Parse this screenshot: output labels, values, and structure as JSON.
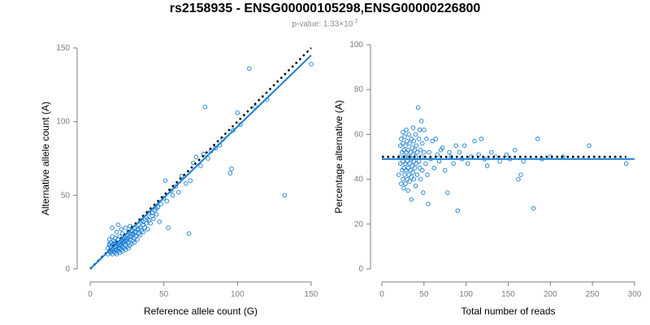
{
  "title": "rs2158935 - ENSG00000105298,ENSG00000226800",
  "subtitle": {
    "prefix": "p-value: 1.33×10",
    "exponent": "-2"
  },
  "colors": {
    "points": "#1a7fd4",
    "fit": "#1a7fd4",
    "reference": "#000000",
    "axis": "#7f7f7f"
  },
  "chart_data": [
    {
      "type": "scatter",
      "xlabel": "Reference allele count (G)",
      "ylabel": "Alternative allele count (A)",
      "xlim": [
        0,
        150
      ],
      "ylim": [
        0,
        150
      ],
      "xticks": [
        0,
        50,
        100,
        150
      ],
      "yticks": [
        0,
        50,
        100,
        150
      ],
      "grid": false,
      "points": [
        [
          12,
          10
        ],
        [
          12,
          14
        ],
        [
          13,
          12
        ],
        [
          13,
          17
        ],
        [
          13,
          20
        ],
        [
          14,
          11
        ],
        [
          14,
          15
        ],
        [
          14,
          18
        ],
        [
          15,
          10
        ],
        [
          15,
          13
        ],
        [
          15,
          16
        ],
        [
          15,
          22
        ],
        [
          15,
          28
        ],
        [
          16,
          12
        ],
        [
          16,
          14
        ],
        [
          16,
          19
        ],
        [
          17,
          11
        ],
        [
          17,
          15
        ],
        [
          17,
          18
        ],
        [
          17,
          21
        ],
        [
          18,
          10
        ],
        [
          18,
          13
        ],
        [
          18,
          17
        ],
        [
          18,
          25
        ],
        [
          19,
          12
        ],
        [
          19,
          16
        ],
        [
          19,
          20
        ],
        [
          19,
          30
        ],
        [
          20,
          11
        ],
        [
          20,
          14
        ],
        [
          20,
          18
        ],
        [
          20,
          22
        ],
        [
          21,
          13
        ],
        [
          21,
          17
        ],
        [
          21,
          19
        ],
        [
          21,
          27
        ],
        [
          22,
          12
        ],
        [
          22,
          15
        ],
        [
          22,
          20
        ],
        [
          22,
          24
        ],
        [
          23,
          14
        ],
        [
          23,
          18
        ],
        [
          23,
          21
        ],
        [
          24,
          13
        ],
        [
          24,
          16
        ],
        [
          24,
          22
        ],
        [
          24,
          28
        ],
        [
          25,
          15
        ],
        [
          25,
          19
        ],
        [
          25,
          23
        ],
        [
          26,
          14
        ],
        [
          26,
          18
        ],
        [
          26,
          25
        ],
        [
          27,
          16
        ],
        [
          27,
          20
        ],
        [
          27,
          29
        ],
        [
          28,
          17
        ],
        [
          28,
          22
        ],
        [
          28,
          26
        ],
        [
          29,
          19
        ],
        [
          29,
          24
        ],
        [
          30,
          18
        ],
        [
          30,
          21
        ],
        [
          30,
          28
        ],
        [
          31,
          22
        ],
        [
          31,
          25
        ],
        [
          32,
          20
        ],
        [
          32,
          27
        ],
        [
          33,
          24
        ],
        [
          33,
          30
        ],
        [
          34,
          23
        ],
        [
          34,
          28
        ],
        [
          35,
          26
        ],
        [
          35,
          33
        ],
        [
          36,
          25
        ],
        [
          36,
          30
        ],
        [
          37,
          28
        ],
        [
          38,
          31
        ],
        [
          38,
          35
        ],
        [
          39,
          27
        ],
        [
          40,
          33
        ],
        [
          40,
          38
        ],
        [
          41,
          31
        ],
        [
          42,
          36
        ],
        [
          43,
          34
        ],
        [
          44,
          40
        ],
        [
          45,
          37
        ],
        [
          46,
          42
        ],
        [
          47,
          32
        ],
        [
          48,
          44
        ],
        [
          50,
          48
        ],
        [
          51,
          60
        ],
        [
          52,
          46
        ],
        [
          53,
          28
        ],
        [
          55,
          53
        ],
        [
          56,
          50
        ],
        [
          58,
          56
        ],
        [
          60,
          52
        ],
        [
          62,
          63
        ],
        [
          65,
          58
        ],
        [
          67,
          24
        ],
        [
          68,
          60
        ],
        [
          70,
          72
        ],
        [
          72,
          76
        ],
        [
          75,
          70
        ],
        [
          77,
          78
        ],
        [
          78,
          110
        ],
        [
          80,
          75
        ],
        [
          82,
          80
        ],
        [
          85,
          82
        ],
        [
          88,
          84
        ],
        [
          90,
          88
        ],
        [
          95,
          65
        ],
        [
          96,
          68
        ],
        [
          97,
          94
        ],
        [
          100,
          106
        ],
        [
          102,
          98
        ],
        [
          108,
          136
        ],
        [
          112,
          110
        ],
        [
          120,
          115
        ],
        [
          132,
          50
        ],
        [
          150,
          139
        ],
        [
          18,
          15
        ],
        [
          20,
          16
        ],
        [
          23,
          19
        ],
        [
          26,
          21
        ],
        [
          29,
          23
        ],
        [
          16,
          17
        ],
        [
          19,
          14
        ],
        [
          22,
          18
        ],
        [
          25,
          20
        ],
        [
          28,
          24
        ],
        [
          14,
          12
        ],
        [
          13,
          16
        ],
        [
          17,
          13
        ],
        [
          21,
          16
        ],
        [
          24,
          19
        ],
        [
          27,
          22
        ],
        [
          30,
          25
        ],
        [
          33,
          27
        ],
        [
          36,
          32
        ],
        [
          39,
          34
        ],
        [
          42,
          38
        ],
        [
          45,
          41
        ]
      ],
      "fit_line": [
        [
          0,
          0
        ],
        [
          150,
          145
        ]
      ],
      "reference_line": [
        [
          0,
          0
        ],
        [
          150,
          150
        ]
      ]
    },
    {
      "type": "scatter",
      "xlabel": "Total number of reads",
      "ylabel": "Percentage alternative (A)",
      "xlim": [
        0,
        300
      ],
      "ylim": [
        0,
        100
      ],
      "xticks": [
        0,
        50,
        100,
        150,
        200,
        250,
        300
      ],
      "yticks": [
        0,
        20,
        40,
        60,
        80,
        100
      ],
      "grid": false,
      "points": [
        [
          20,
          42
        ],
        [
          21,
          50
        ],
        [
          22,
          47
        ],
        [
          22,
          55
        ],
        [
          23,
          38
        ],
        [
          23,
          58
        ],
        [
          24,
          44
        ],
        [
          24,
          52
        ],
        [
          25,
          40
        ],
        [
          25,
          48
        ],
        [
          25,
          56
        ],
        [
          25,
          61
        ],
        [
          26,
          36
        ],
        [
          26,
          45
        ],
        [
          26,
          53
        ],
        [
          27,
          42
        ],
        [
          27,
          50
        ],
        [
          27,
          59
        ],
        [
          28,
          38
        ],
        [
          28,
          47
        ],
        [
          28,
          55
        ],
        [
          29,
          44
        ],
        [
          29,
          52
        ],
        [
          29,
          62
        ],
        [
          30,
          40
        ],
        [
          30,
          48
        ],
        [
          30,
          57
        ],
        [
          31,
          35
        ],
        [
          31,
          45
        ],
        [
          31,
          53
        ],
        [
          32,
          42
        ],
        [
          32,
          50
        ],
        [
          32,
          60
        ],
        [
          33,
          39
        ],
        [
          33,
          47
        ],
        [
          33,
          56
        ],
        [
          34,
          44
        ],
        [
          34,
          52
        ],
        [
          35,
          31
        ],
        [
          35,
          41
        ],
        [
          35,
          49
        ],
        [
          35,
          58
        ],
        [
          36,
          46
        ],
        [
          36,
          54
        ],
        [
          37,
          43
        ],
        [
          37,
          51
        ],
        [
          37,
          63
        ],
        [
          38,
          40
        ],
        [
          38,
          48
        ],
        [
          38,
          57
        ],
        [
          39,
          45
        ],
        [
          39,
          53
        ],
        [
          40,
          37
        ],
        [
          40,
          50
        ],
        [
          40,
          60
        ],
        [
          41,
          47
        ],
        [
          41,
          55
        ],
        [
          42,
          42
        ],
        [
          42,
          52
        ],
        [
          43,
          72
        ],
        [
          44,
          48
        ],
        [
          44,
          58
        ],
        [
          45,
          45
        ],
        [
          45,
          62
        ],
        [
          46,
          40
        ],
        [
          46,
          53
        ],
        [
          47,
          50
        ],
        [
          47,
          66
        ],
        [
          48,
          44
        ],
        [
          48,
          56
        ],
        [
          49,
          34
        ],
        [
          50,
          52
        ],
        [
          50,
          62
        ],
        [
          52,
          47
        ],
        [
          53,
          58
        ],
        [
          54,
          42
        ],
        [
          55,
          29
        ],
        [
          56,
          52
        ],
        [
          58,
          49
        ],
        [
          60,
          57
        ],
        [
          62,
          45
        ],
        [
          64,
          58
        ],
        [
          66,
          51
        ],
        [
          68,
          48
        ],
        [
          70,
          53
        ],
        [
          72,
          54
        ],
        [
          75,
          44
        ],
        [
          78,
          34
        ],
        [
          80,
          52
        ],
        [
          82,
          50
        ],
        [
          85,
          47
        ],
        [
          88,
          55
        ],
        [
          90,
          26
        ],
        [
          92,
          52
        ],
        [
          95,
          49
        ],
        [
          98,
          55
        ],
        [
          102,
          47
        ],
        [
          106,
          50
        ],
        [
          110,
          57
        ],
        [
          115,
          51
        ],
        [
          118,
          58
        ],
        [
          122,
          49
        ],
        [
          125,
          46
        ],
        [
          130,
          52
        ],
        [
          135,
          50
        ],
        [
          140,
          48
        ],
        [
          148,
          51
        ],
        [
          152,
          49
        ],
        [
          158,
          53
        ],
        [
          162,
          40
        ],
        [
          165,
          42
        ],
        [
          168,
          48
        ],
        [
          180,
          27
        ],
        [
          185,
          58
        ],
        [
          190,
          49
        ],
        [
          200,
          50
        ],
        [
          215,
          50
        ],
        [
          246,
          55
        ],
        [
          290,
          47
        ]
      ],
      "fit_line": [
        [
          0,
          49
        ],
        [
          300,
          49
        ]
      ],
      "reference_line": [
        [
          0,
          50
        ],
        [
          290,
          50
        ]
      ]
    }
  ]
}
